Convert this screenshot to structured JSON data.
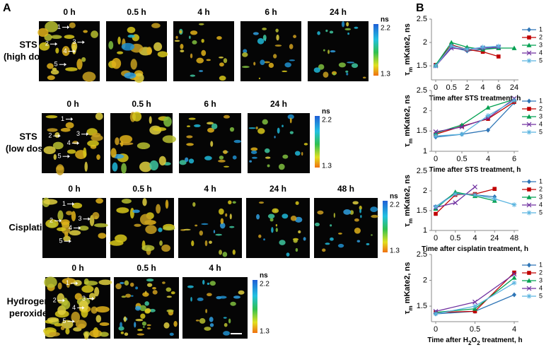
{
  "panel_a": {
    "label": "A",
    "rows": [
      {
        "name": [
          "STS",
          "(high dose)"
        ],
        "times": [
          "0 h",
          "0.5 h",
          "4 h",
          "6 h",
          "24 h"
        ],
        "colorbar": {
          "unit": "ns",
          "max": 2.2,
          "min": 1.3
        },
        "arrows": [
          1,
          2,
          3,
          4,
          5
        ]
      },
      {
        "name": [
          "STS",
          "(low dose)"
        ],
        "times": [
          "0 h",
          "0.5 h",
          "6 h",
          "24 h"
        ],
        "colorbar": {
          "unit": "ns",
          "max": 2.2,
          "min": 1.3
        },
        "arrows": [
          1,
          2,
          3,
          4,
          5
        ]
      },
      {
        "name": [
          "Cisplatin"
        ],
        "times": [
          "0 h",
          "0.5 h",
          "4 h",
          "24 h",
          "48 h"
        ],
        "colorbar": {
          "unit": "ns",
          "max": 2.2,
          "min": 1.3
        },
        "arrows": [
          1,
          2,
          3,
          4,
          5
        ]
      },
      {
        "name": [
          "Hydrogen",
          "peroxide"
        ],
        "times": [
          "0 h",
          "0.5 h",
          "4 h"
        ],
        "colorbar": {
          "unit": "ns",
          "max": 2.2,
          "min": 1.3
        },
        "arrows": [
          1,
          2,
          3,
          4,
          5
        ]
      }
    ]
  },
  "panel_b": {
    "label": "B"
  },
  "chart_data": [
    {
      "type": "line",
      "categories": [
        "0",
        "0.5",
        "2",
        "4",
        "6",
        "24"
      ],
      "xlabel": [
        {
          "text": "Time after STS treatment, h"
        }
      ],
      "ylabel": [
        {
          "text": "τ"
        },
        {
          "sub": "m"
        },
        {
          "text": " mKate2, ns"
        }
      ],
      "ylim": [
        1.2,
        2.5
      ],
      "yticks": [
        1.5,
        2,
        2.5
      ],
      "grid": false,
      "legend": "right",
      "series": [
        {
          "name": "1",
          "color": "#2e75b6",
          "marker": "diamond",
          "values": [
            1.5,
            1.9,
            1.82,
            1.85,
            1.9,
            null
          ]
        },
        {
          "name": "2",
          "color": "#c00000",
          "marker": "square",
          "values": [
            1.52,
            1.95,
            1.85,
            1.8,
            1.7,
            null
          ]
        },
        {
          "name": "3",
          "color": "#00a050",
          "marker": "triangle",
          "values": [
            1.52,
            2.0,
            1.9,
            1.85,
            1.88,
            1.88
          ]
        },
        {
          "name": "4",
          "color": "#7030a0",
          "marker": "x",
          "values": [
            1.5,
            1.88,
            1.85,
            1.88,
            1.9,
            null
          ]
        },
        {
          "name": "5",
          "color": "#5bb5e0",
          "marker": "star",
          "values": [
            1.5,
            1.93,
            1.85,
            1.9,
            1.92,
            null
          ]
        }
      ]
    },
    {
      "type": "line",
      "categories": [
        "0",
        "0.5",
        "4",
        "6"
      ],
      "xlabel": [
        {
          "text": "Time after STS treatment, h"
        }
      ],
      "ylabel": [
        {
          "text": "τ"
        },
        {
          "sub": "m"
        },
        {
          "text": " mKate2, ns"
        }
      ],
      "ylim": [
        1,
        2.5
      ],
      "yticks": [
        1,
        1.5,
        2,
        2.5
      ],
      "grid": false,
      "legend": "right",
      "series": [
        {
          "name": "1",
          "color": "#2e75b6",
          "marker": "diamond",
          "values": [
            1.35,
            1.42,
            1.52,
            2.2
          ]
        },
        {
          "name": "2",
          "color": "#c00000",
          "marker": "square",
          "values": [
            1.42,
            1.62,
            1.8,
            2.22
          ]
        },
        {
          "name": "3",
          "color": "#00a050",
          "marker": "triangle",
          "values": [
            1.45,
            1.65,
            2.08,
            2.28
          ]
        },
        {
          "name": "4",
          "color": "#7030a0",
          "marker": "x",
          "values": [
            1.48,
            1.6,
            1.82,
            2.3
          ]
        },
        {
          "name": "5",
          "color": "#5bb5e0",
          "marker": "star",
          "values": [
            1.38,
            1.42,
            1.88,
            2.25
          ]
        }
      ]
    },
    {
      "type": "line",
      "categories": [
        "0",
        "0.5",
        "4",
        "24",
        "48"
      ],
      "xlabel": [
        {
          "text": "Time after cisplatin treatment, h"
        }
      ],
      "ylabel": [
        {
          "text": "τ"
        },
        {
          "sub": "m"
        },
        {
          "text": " mKate2, ns"
        }
      ],
      "ylim": [
        1,
        2.5
      ],
      "yticks": [
        1,
        1.5,
        2,
        2.5
      ],
      "grid": false,
      "legend": "right",
      "series": [
        {
          "name": "1",
          "color": "#2e75b6",
          "marker": "diamond",
          "values": [
            1.6,
            1.95,
            1.9,
            1.85,
            null
          ]
        },
        {
          "name": "2",
          "color": "#c00000",
          "marker": "square",
          "values": [
            1.42,
            1.9,
            1.92,
            2.05,
            null
          ]
        },
        {
          "name": "3",
          "color": "#00a050",
          "marker": "triangle",
          "values": [
            1.55,
            1.97,
            1.87,
            1.75,
            null
          ]
        },
        {
          "name": "4",
          "color": "#7030a0",
          "marker": "x",
          "values": [
            1.58,
            1.7,
            2.1,
            null,
            null
          ]
        },
        {
          "name": "5",
          "color": "#5bb5e0",
          "marker": "star",
          "values": [
            1.6,
            1.92,
            1.9,
            1.8,
            1.65
          ]
        }
      ]
    },
    {
      "type": "line",
      "categories": [
        "0",
        "0.5",
        "4"
      ],
      "xlabel": [
        {
          "text": "Time after H"
        },
        {
          "sub": "2"
        },
        {
          "text": "O"
        },
        {
          "sub": "2"
        },
        {
          "text": " treatment, h"
        }
      ],
      "ylabel": [
        {
          "text": "τ"
        },
        {
          "sub": "m"
        },
        {
          "text": " mKate2, ns"
        }
      ],
      "ylim": [
        1.2,
        2.5
      ],
      "yticks": [
        1.5,
        2,
        2.5
      ],
      "grid": false,
      "legend": "right",
      "series": [
        {
          "name": "1",
          "color": "#2e75b6",
          "marker": "diamond",
          "values": [
            1.35,
            1.4,
            1.72
          ]
        },
        {
          "name": "2",
          "color": "#c00000",
          "marker": "square",
          "values": [
            1.38,
            1.4,
            2.15
          ]
        },
        {
          "name": "3",
          "color": "#00a050",
          "marker": "triangle",
          "values": [
            1.38,
            1.45,
            2.05
          ]
        },
        {
          "name": "4",
          "color": "#7030a0",
          "marker": "x",
          "values": [
            1.4,
            1.58,
            2.12
          ]
        },
        {
          "name": "5",
          "color": "#5bb5e0",
          "marker": "star",
          "values": [
            1.35,
            1.5,
            1.95
          ]
        }
      ]
    }
  ]
}
